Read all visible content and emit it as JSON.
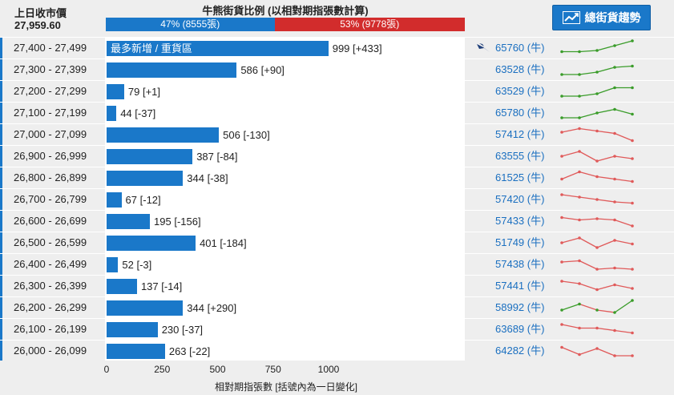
{
  "header": {
    "prev_close_label": "上日收市價",
    "prev_close_value": "27,959.60",
    "ratio_title": "牛熊街貨比例 (以相對期指張數計算)",
    "bull_text": "47% (8555張)",
    "bull_pct": 47,
    "bear_text": "53% (9778張)",
    "bear_pct": 53,
    "trend_button": "總街貨趨勢"
  },
  "colors": {
    "bull": "#1a78c9",
    "bear": "#d22c2c",
    "spark_up": "#3a9c2a",
    "spark_down": "#e05a5a"
  },
  "chart_data": {
    "type": "bar",
    "orientation": "horizontal",
    "xlabel": "相對期指張數 [括號內為一日變化]",
    "xlim": [
      0,
      1000
    ],
    "xticks": [
      0,
      250,
      500,
      750,
      1000
    ],
    "highlight_label": "最多新增 / 重貨區",
    "rows": [
      {
        "range": "27,400 - 27,499",
        "value": 999,
        "change": "[+433]",
        "code": "65760 (牛)",
        "trend": "up",
        "spark": [
          3,
          3,
          4,
          8,
          12
        ]
      },
      {
        "range": "27,300 - 27,399",
        "value": 586,
        "change": "[+90]",
        "code": "63528 (牛)",
        "trend": "up",
        "spark": [
          2,
          2,
          4,
          8,
          9
        ]
      },
      {
        "range": "27,200 - 27,299",
        "value": 79,
        "change": "[+1]",
        "code": "63529 (牛)",
        "trend": "up",
        "spark": [
          2,
          2,
          4,
          9,
          9
        ]
      },
      {
        "range": "27,100 - 27,199",
        "value": 44,
        "change": "[-37]",
        "code": "65780 (牛)",
        "trend": "up",
        "spark": [
          2,
          2,
          6,
          9,
          5
        ]
      },
      {
        "range": "27,000 - 27,099",
        "value": 506,
        "change": "[-130]",
        "code": "57412 (牛)",
        "trend": "down",
        "spark": [
          8,
          11,
          9,
          7,
          1
        ]
      },
      {
        "range": "26,900 - 26,999",
        "value": 387,
        "change": "[-84]",
        "code": "63555 (牛)",
        "trend": "down",
        "spark": [
          6,
          10,
          2,
          6,
          4
        ]
      },
      {
        "range": "26,800 - 26,899",
        "value": 344,
        "change": "[-38]",
        "code": "61525 (牛)",
        "trend": "down",
        "spark": [
          5,
          11,
          7,
          5,
          3
        ]
      },
      {
        "range": "26,700 - 26,799",
        "value": 67,
        "change": "[-12]",
        "code": "57420 (牛)",
        "trend": "down",
        "spark": [
          10,
          8,
          6,
          4,
          3
        ]
      },
      {
        "range": "26,600 - 26,699",
        "value": 195,
        "change": "[-156]",
        "code": "57433 (牛)",
        "trend": "down",
        "spark": [
          9,
          7,
          8,
          7,
          2
        ]
      },
      {
        "range": "26,500 - 26,599",
        "value": 401,
        "change": "[-184]",
        "code": "51749 (牛)",
        "trend": "down",
        "spark": [
          6,
          10,
          2,
          8,
          5
        ]
      },
      {
        "range": "26,400 - 26,499",
        "value": 52,
        "change": "[-3]",
        "code": "57438 (牛)",
        "trend": "down",
        "spark": [
          8,
          9,
          2,
          3,
          2
        ]
      },
      {
        "range": "26,300 - 26,399",
        "value": 137,
        "change": "[-14]",
        "code": "57441 (牛)",
        "trend": "down",
        "spark": [
          10,
          8,
          3,
          7,
          4
        ]
      },
      {
        "range": "26,200 - 26,299",
        "value": 344,
        "change": "[+290]",
        "code": "58992 (牛)",
        "trend": "mixed",
        "spark": [
          4,
          9,
          4,
          2,
          12
        ]
      },
      {
        "range": "26,100 - 26,199",
        "value": 230,
        "change": "[-37]",
        "code": "63689 (牛)",
        "trend": "down",
        "spark": [
          10,
          7,
          7,
          5,
          3
        ]
      },
      {
        "range": "26,000 - 26,099",
        "value": 263,
        "change": "[-22]",
        "code": "64282 (牛)",
        "trend": "down",
        "spark": [
          9,
          3,
          8,
          2,
          2
        ]
      }
    ]
  }
}
